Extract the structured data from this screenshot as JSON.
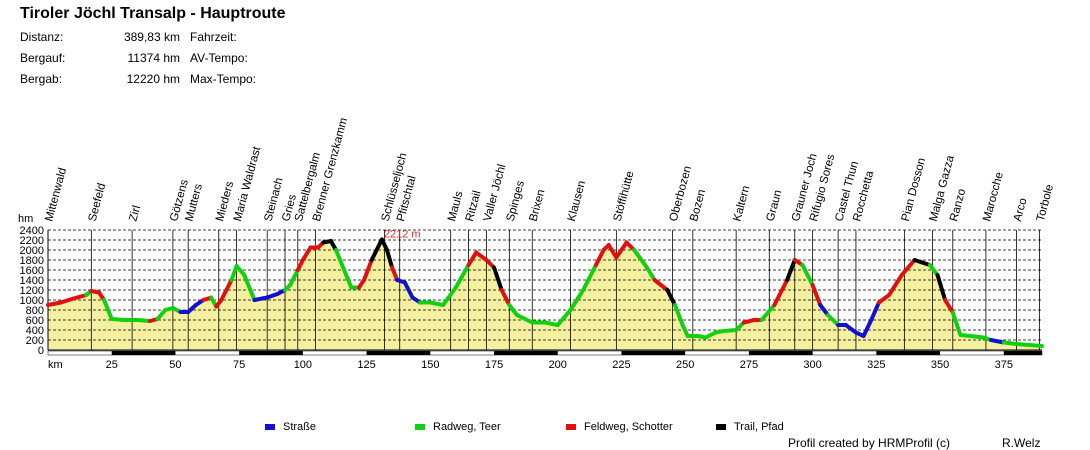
{
  "title": "Tiroler Jöchl Transalp - Hauptroute",
  "stats": [
    {
      "label": "Distanz:",
      "value": "389,83 km",
      "extra": "Fahrzeit:"
    },
    {
      "label": "Bergauf:",
      "value": "11374 hm",
      "extra": "AV-Tempo:"
    },
    {
      "label": "Bergab:",
      "value": "12220 hm",
      "extra": "Max-Tempo:"
    }
  ],
  "footer": {
    "credit": "Profil created by HRMProfil (c)",
    "author": "R.Welz"
  },
  "colors": {
    "strasse": "#1010d0",
    "radweg": "#10d010",
    "feldweg": "#e01010",
    "trail": "#000000",
    "fill": "#f4f0a0",
    "max_label": "#e03030"
  },
  "chart_data": {
    "type": "area",
    "ylabel": "hm",
    "xlabel": "km",
    "xlim": [
      0,
      390
    ],
    "ylim": [
      0,
      2400
    ],
    "x_ticks": [
      25,
      50,
      75,
      100,
      125,
      150,
      175,
      200,
      225,
      250,
      275,
      300,
      325,
      350,
      375
    ],
    "y_ticks": [
      0,
      200,
      400,
      600,
      800,
      1000,
      1200,
      1400,
      1600,
      1800,
      2000,
      2200,
      2400
    ],
    "grid": true,
    "max_label": "2212 m",
    "max_point": {
      "km": 131,
      "hm": 2212
    },
    "legend": [
      {
        "name": "Straße",
        "type": "strasse"
      },
      {
        "name": "Radweg, Teer",
        "type": "radweg"
      },
      {
        "name": "Feldweg, Schotter",
        "type": "feldweg"
      },
      {
        "name": "Trail, Pfad",
        "type": "trail"
      }
    ],
    "waypoints": [
      {
        "name": "Mittenwald",
        "km": 0
      },
      {
        "name": "Seefeld",
        "km": 17
      },
      {
        "name": "Zirl",
        "km": 33
      },
      {
        "name": "Götzens",
        "km": 49
      },
      {
        "name": "Mutters",
        "km": 55
      },
      {
        "name": "Mieders",
        "km": 67
      },
      {
        "name": "Maria Waldrast",
        "km": 74
      },
      {
        "name": "Steinach",
        "km": 86
      },
      {
        "name": "Gries",
        "km": 93
      },
      {
        "name": "Sattelbergalm",
        "km": 98
      },
      {
        "name": "Brenner Grenzkamm",
        "km": 105
      },
      {
        "name": "Schlüsseljoch",
        "km": 132
      },
      {
        "name": "Pfitschtal",
        "km": 138
      },
      {
        "name": "Mauls",
        "km": 158
      },
      {
        "name": "Ritzail",
        "km": 165
      },
      {
        "name": "Valler Jöchl",
        "km": 172
      },
      {
        "name": "Spinges",
        "km": 181
      },
      {
        "name": "Brixen",
        "km": 190
      },
      {
        "name": "Klausen",
        "km": 205
      },
      {
        "name": "Stöffihütte",
        "km": 223
      },
      {
        "name": "Oberbozen",
        "km": 245
      },
      {
        "name": "Bozen",
        "km": 253
      },
      {
        "name": "Kaltern",
        "km": 270
      },
      {
        "name": "Graun",
        "km": 283
      },
      {
        "name": "Grauner Joch",
        "km": 293
      },
      {
        "name": "Rifugio Sores",
        "km": 300
      },
      {
        "name": "Castel Thun",
        "km": 310
      },
      {
        "name": "Rocchetta",
        "km": 317
      },
      {
        "name": "Pian Dosson",
        "km": 336
      },
      {
        "name": "Malga Gazza",
        "km": 347
      },
      {
        "name": "Ranzo",
        "km": 355
      },
      {
        "name": "Marocche",
        "km": 368
      },
      {
        "name": "Arco",
        "km": 380
      },
      {
        "name": "Torbole",
        "km": 389
      }
    ],
    "profile": [
      [
        0,
        900,
        "radweg"
      ],
      [
        5,
        950,
        "feldweg"
      ],
      [
        10,
        1030,
        "feldweg"
      ],
      [
        15,
        1100,
        "feldweg"
      ],
      [
        17,
        1180,
        "radweg"
      ],
      [
        20,
        1150,
        "feldweg"
      ],
      [
        22,
        1000,
        "feldweg"
      ],
      [
        25,
        620,
        "radweg"
      ],
      [
        30,
        600,
        "radweg"
      ],
      [
        35,
        600,
        "radweg"
      ],
      [
        40,
        580,
        "radweg"
      ],
      [
        43,
        620,
        "feldweg"
      ],
      [
        46,
        800,
        "radweg"
      ],
      [
        49,
        840,
        "radweg"
      ],
      [
        52,
        760,
        "radweg"
      ],
      [
        55,
        760,
        "strasse"
      ],
      [
        58,
        900,
        "strasse"
      ],
      [
        61,
        1000,
        "strasse"
      ],
      [
        64,
        1050,
        "feldweg"
      ],
      [
        66,
        870,
        "radweg"
      ],
      [
        68,
        1000,
        "feldweg"
      ],
      [
        72,
        1400,
        "feldweg"
      ],
      [
        74,
        1680,
        "radweg"
      ],
      [
        77,
        1500,
        "radweg"
      ],
      [
        81,
        1000,
        "radweg"
      ],
      [
        86,
        1050,
        "strasse"
      ],
      [
        90,
        1120,
        "strasse"
      ],
      [
        93,
        1200,
        "strasse"
      ],
      [
        95,
        1300,
        "radweg"
      ],
      [
        98,
        1600,
        "radweg"
      ],
      [
        100,
        1800,
        "feldweg"
      ],
      [
        103,
        2050,
        "feldweg"
      ],
      [
        106,
        2050,
        "feldweg"
      ],
      [
        108,
        2150,
        "feldweg"
      ],
      [
        111,
        2180,
        "trail"
      ],
      [
        113,
        2000,
        "trail"
      ],
      [
        117,
        1500,
        "radweg"
      ],
      [
        119,
        1250,
        "radweg"
      ],
      [
        122,
        1250,
        "radweg"
      ],
      [
        124,
        1400,
        "feldweg"
      ],
      [
        127,
        1800,
        "feldweg"
      ],
      [
        131,
        2212,
        "trail"
      ],
      [
        133,
        2000,
        "trail"
      ],
      [
        135,
        1650,
        "trail"
      ],
      [
        137,
        1400,
        "feldweg"
      ],
      [
        140,
        1350,
        "strasse"
      ],
      [
        143,
        1050,
        "strasse"
      ],
      [
        146,
        950,
        "strasse"
      ],
      [
        150,
        950,
        "radweg"
      ],
      [
        155,
        900,
        "radweg"
      ],
      [
        160,
        1250,
        "radweg"
      ],
      [
        165,
        1700,
        "radweg"
      ],
      [
        168,
        1950,
        "feldweg"
      ],
      [
        172,
        1800,
        "feldweg"
      ],
      [
        175,
        1650,
        "feldweg"
      ],
      [
        178,
        1200,
        "trail"
      ],
      [
        181,
        900,
        "feldweg"
      ],
      [
        184,
        700,
        "radweg"
      ],
      [
        190,
        550,
        "radweg"
      ],
      [
        195,
        550,
        "radweg"
      ],
      [
        200,
        500,
        "radweg"
      ],
      [
        205,
        800,
        "radweg"
      ],
      [
        210,
        1200,
        "radweg"
      ],
      [
        215,
        1700,
        "radweg"
      ],
      [
        218,
        2000,
        "feldweg"
      ],
      [
        220,
        2100,
        "feldweg"
      ],
      [
        223,
        1850,
        "feldweg"
      ],
      [
        227,
        2150,
        "feldweg"
      ],
      [
        230,
        2000,
        "feldweg"
      ],
      [
        235,
        1650,
        "radweg"
      ],
      [
        238,
        1400,
        "radweg"
      ],
      [
        243,
        1200,
        "feldweg"
      ],
      [
        246,
        900,
        "trail"
      ],
      [
        249,
        500,
        "radweg"
      ],
      [
        251,
        280,
        "radweg"
      ],
      [
        255,
        280,
        "radweg"
      ],
      [
        258,
        250,
        "radweg"
      ],
      [
        262,
        350,
        "radweg"
      ],
      [
        265,
        380,
        "radweg"
      ],
      [
        270,
        400,
        "radweg"
      ],
      [
        273,
        550,
        "radweg"
      ],
      [
        277,
        600,
        "feldweg"
      ],
      [
        280,
        600,
        "feldweg"
      ],
      [
        285,
        900,
        "radweg"
      ],
      [
        290,
        1400,
        "feldweg"
      ],
      [
        293,
        1800,
        "trail"
      ],
      [
        296,
        1700,
        "feldweg"
      ],
      [
        300,
        1300,
        "radweg"
      ],
      [
        303,
        900,
        "feldweg"
      ],
      [
        306,
        700,
        "strasse"
      ],
      [
        310,
        500,
        "radweg"
      ],
      [
        313,
        500,
        "strasse"
      ],
      [
        317,
        350,
        "strasse"
      ],
      [
        320,
        280,
        "strasse"
      ],
      [
        323,
        600,
        "strasse"
      ],
      [
        326,
        950,
        "strasse"
      ],
      [
        330,
        1100,
        "feldweg"
      ],
      [
        335,
        1500,
        "feldweg"
      ],
      [
        340,
        1800,
        "feldweg"
      ],
      [
        343,
        1750,
        "trail"
      ],
      [
        346,
        1700,
        "trail"
      ],
      [
        349,
        1500,
        "radweg"
      ],
      [
        352,
        1000,
        "trail"
      ],
      [
        355,
        750,
        "feldweg"
      ],
      [
        358,
        300,
        "radweg"
      ],
      [
        362,
        280,
        "radweg"
      ],
      [
        367,
        250,
        "radweg"
      ],
      [
        370,
        200,
        "radweg"
      ],
      [
        375,
        150,
        "strasse"
      ],
      [
        380,
        120,
        "radweg"
      ],
      [
        385,
        100,
        "radweg"
      ],
      [
        390,
        80,
        "radweg"
      ]
    ]
  }
}
